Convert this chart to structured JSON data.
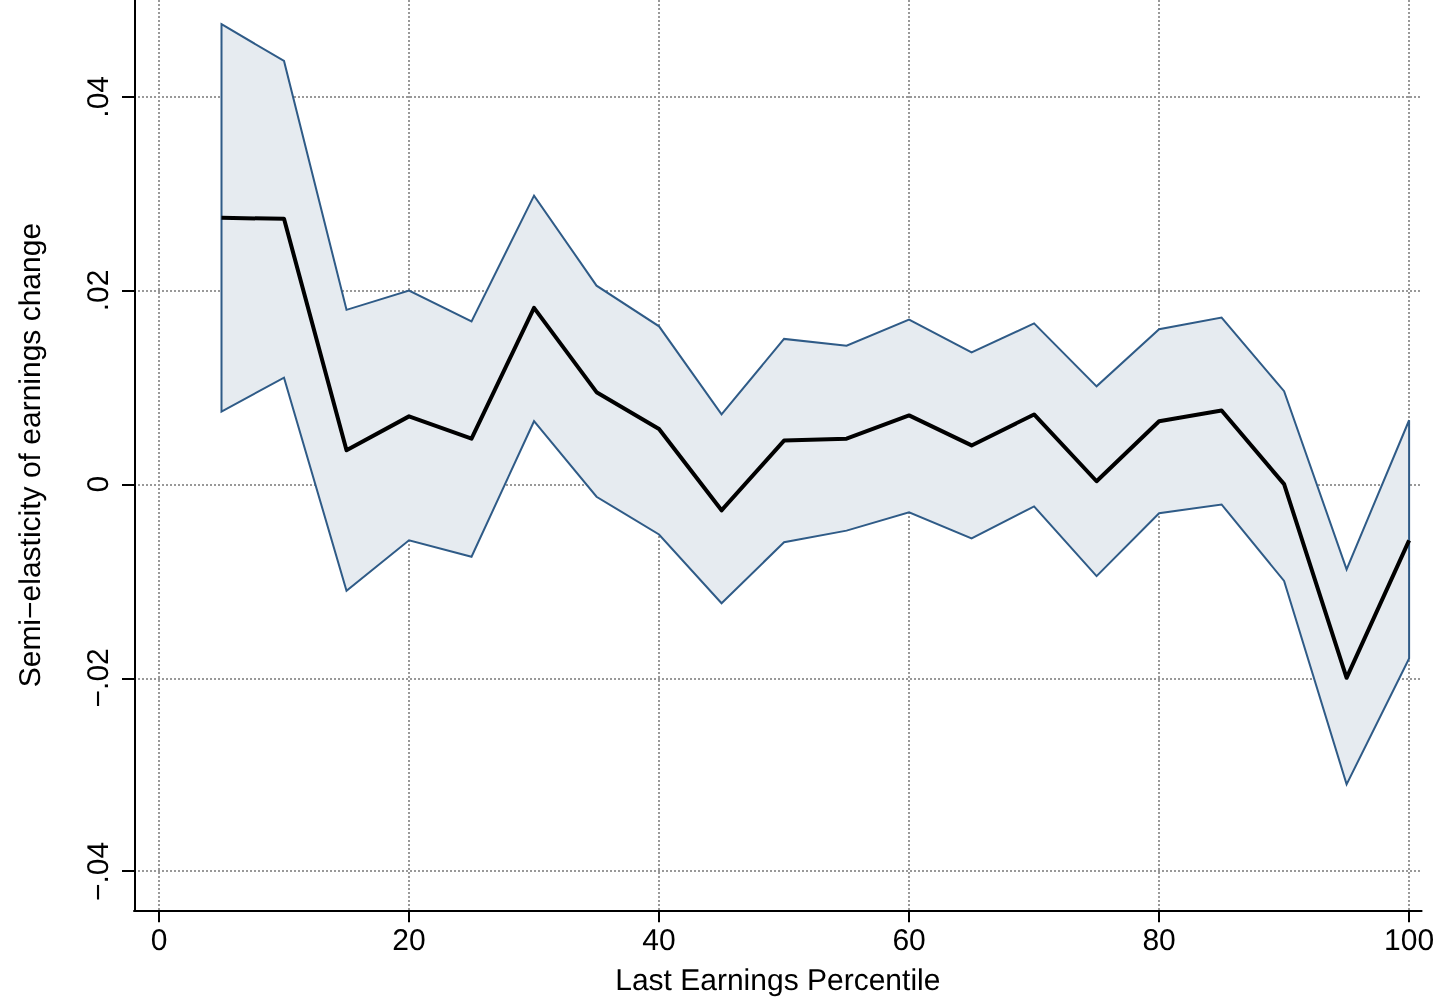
{
  "chart_data": {
    "type": "line",
    "xlabel": "Last Earnings Percentile",
    "ylabel": "Semi−elasticity of earnings change",
    "x": [
      5,
      10,
      15,
      20,
      25,
      30,
      35,
      40,
      45,
      50,
      55,
      60,
      65,
      70,
      75,
      80,
      85,
      90,
      95,
      100
    ],
    "series": [
      {
        "color": "#000000",
        "values": [
          0.0275,
          0.0274,
          0.0035,
          0.007,
          0.0047,
          0.0182,
          0.0095,
          0.0057,
          -0.0027,
          0.0045,
          0.0047,
          0.0071,
          0.004,
          0.0072,
          0.0003,
          0.0065,
          0.0076,
          0.0,
          -0.02,
          -0.0058
        ],
        "upper": [
          0.0475,
          0.0437,
          0.018,
          0.02,
          0.0168,
          0.0298,
          0.0205,
          0.0163,
          0.0072,
          0.015,
          0.0143,
          0.017,
          0.0136,
          0.0166,
          0.0101,
          0.016,
          0.0172,
          0.0096,
          -0.0088,
          0.0066
        ],
        "lower": [
          0.0075,
          0.011,
          -0.011,
          -0.0058,
          -0.0075,
          0.0065,
          -0.0013,
          -0.0052,
          -0.0123,
          -0.006,
          -0.0048,
          -0.0029,
          -0.0056,
          -0.0023,
          -0.0095,
          -0.003,
          -0.0021,
          -0.01,
          -0.031,
          -0.018
        ]
      }
    ],
    "xlim": [
      -2,
      101
    ],
    "xticks": [
      0,
      20,
      40,
      60,
      80,
      100
    ],
    "ylim": [
      -0.044,
      0.05
    ],
    "yticks": [
      {
        "value": -0.04,
        "label": "−.04"
      },
      {
        "value": -0.02,
        "label": "−.02"
      },
      {
        "value": 0,
        "label": "0"
      },
      {
        "value": 0.02,
        "label": ".02"
      },
      {
        "value": 0.04,
        "label": ".04"
      }
    ],
    "grid": true,
    "marker": "none",
    "line_style": "solid"
  }
}
